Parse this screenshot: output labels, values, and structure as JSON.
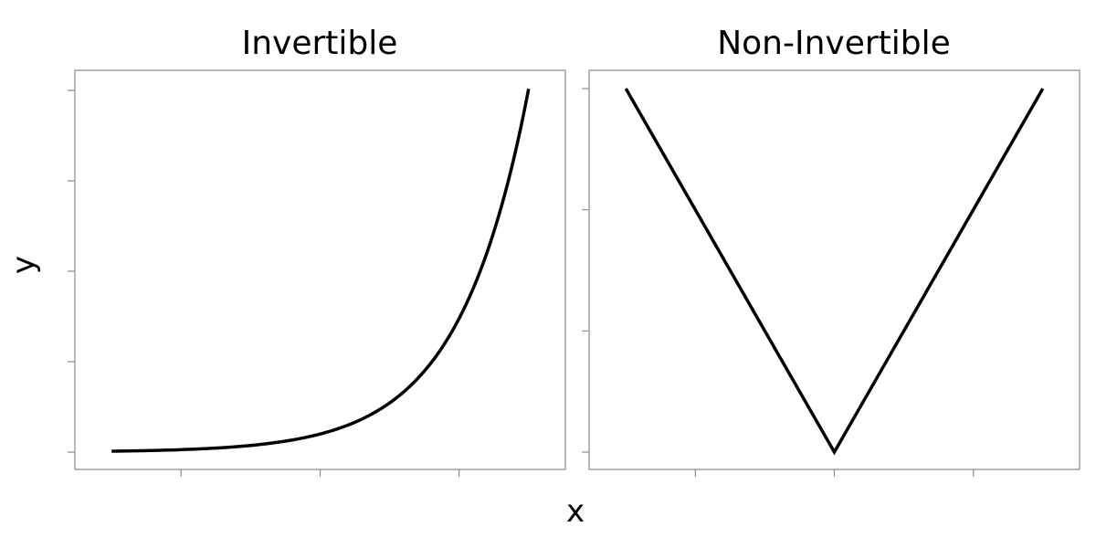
{
  "chart_data": [
    {
      "type": "line",
      "title": "Invertible",
      "xlabel": "x",
      "ylabel": "y",
      "xlim": [
        -3.2,
        3.2
      ],
      "ylim": [
        0,
        20.1
      ],
      "x_ticks": [
        -2,
        0,
        2
      ],
      "y_ticks": [
        0,
        5,
        10,
        15,
        20
      ],
      "tick_labels_shown": false,
      "grid": false,
      "series": [
        {
          "x": [
            -3,
            -2.5,
            -2,
            -1.5,
            -1,
            -0.5,
            0,
            0.5,
            1,
            1.5,
            2,
            2.5,
            3
          ],
          "y": [
            0.05,
            0.08,
            0.14,
            0.22,
            0.37,
            0.61,
            1.0,
            1.65,
            2.72,
            4.48,
            7.39,
            12.18,
            20.09
          ],
          "color": "#000000"
        }
      ]
    },
    {
      "type": "line",
      "title": "Non-Invertible",
      "xlabel": "x",
      "ylabel": "y",
      "xlim": [
        -3.2,
        3.2
      ],
      "ylim": [
        0,
        3
      ],
      "x_ticks": [
        -2,
        0,
        2
      ],
      "y_ticks": [
        0,
        1,
        2,
        3
      ],
      "tick_labels_shown": false,
      "grid": false,
      "series": [
        {
          "x": [
            -3,
            0,
            3
          ],
          "y": [
            3,
            0,
            3
          ],
          "color": "#000000"
        }
      ]
    }
  ],
  "labels": {
    "x": "x",
    "y": "y"
  }
}
